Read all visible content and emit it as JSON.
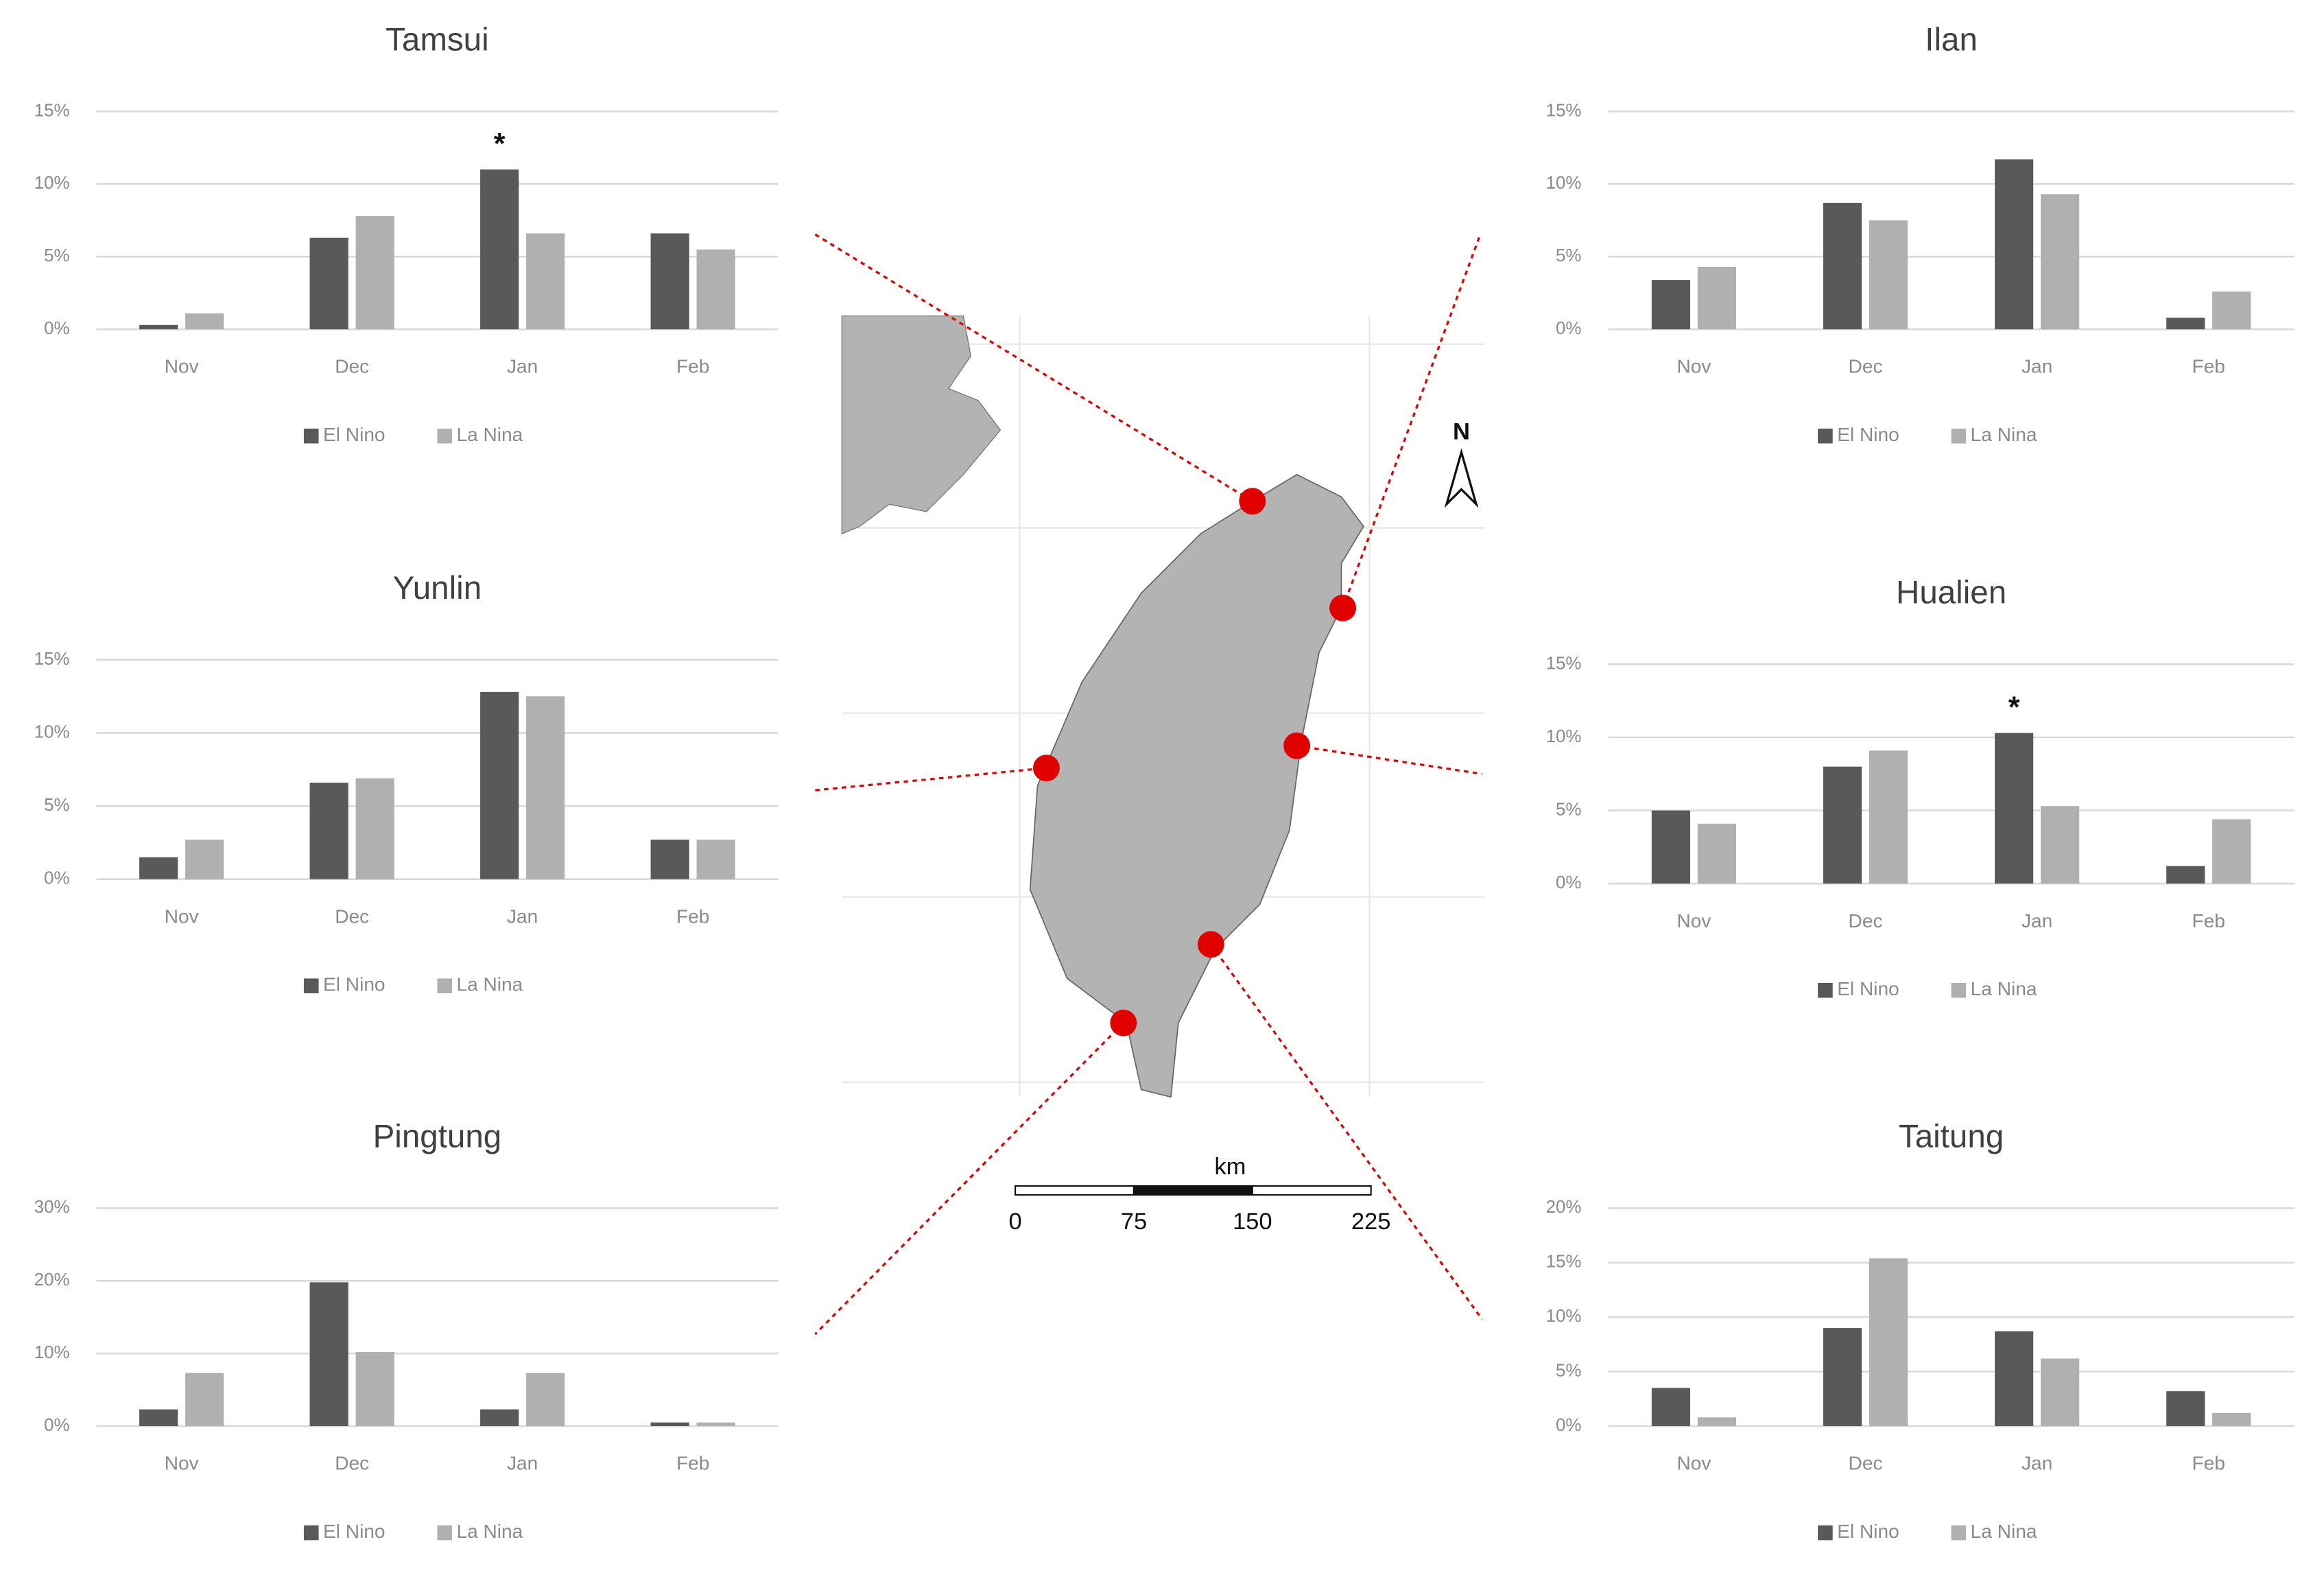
{
  "chart_data": [
    {
      "type": "bar",
      "title": "Tamsui",
      "categories": [
        "Nov",
        "Dec",
        "Jan",
        "Feb"
      ],
      "series": [
        {
          "name": "El Nino",
          "color": "#595959",
          "values": [
            0.3,
            6.3,
            11,
            6.6
          ]
        },
        {
          "name": "La Nina",
          "color": "#b0b0b0",
          "values": [
            1.1,
            7.8,
            6.6,
            5.5
          ]
        }
      ],
      "ylim": [
        0,
        15
      ],
      "yticks": [
        {
          "value": 0,
          "label": "0%"
        },
        {
          "value": 5,
          "label": "5%"
        },
        {
          "value": 10,
          "label": "10%"
        },
        {
          "value": 15,
          "label": "15%"
        }
      ],
      "grid": true,
      "legend": "bottom",
      "annotations": [
        {
          "text": "*",
          "x": "Jan"
        }
      ]
    },
    {
      "type": "bar",
      "title": "Yunlin",
      "categories": [
        "Nov",
        "Dec",
        "Jan",
        "Feb"
      ],
      "series": [
        {
          "name": "El Nino",
          "color": "#595959",
          "values": [
            1.5,
            6.6,
            12.8,
            2.7
          ]
        },
        {
          "name": "La Nina",
          "color": "#b0b0b0",
          "values": [
            2.7,
            6.9,
            12.5,
            2.7
          ]
        }
      ],
      "ylim": [
        0,
        15
      ],
      "yticks": [
        {
          "value": 0,
          "label": "0%"
        },
        {
          "value": 5,
          "label": "5%"
        },
        {
          "value": 10,
          "label": "10%"
        },
        {
          "value": 15,
          "label": "15%"
        }
      ],
      "grid": true,
      "legend": "bottom"
    },
    {
      "type": "bar",
      "title": "Pingtung",
      "categories": [
        "Nov",
        "Dec",
        "Jan",
        "Feb"
      ],
      "series": [
        {
          "name": "El Nino",
          "color": "#595959",
          "values": [
            2.3,
            19.8,
            2.3,
            0.5
          ]
        },
        {
          "name": "La Nina",
          "color": "#b0b0b0",
          "values": [
            7.3,
            10.2,
            7.3,
            0.5
          ]
        }
      ],
      "ylim": [
        0,
        30
      ],
      "yticks": [
        {
          "value": 0,
          "label": "0%"
        },
        {
          "value": 10,
          "label": "10%"
        },
        {
          "value": 20,
          "label": "20%"
        },
        {
          "value": 30,
          "label": "30%"
        }
      ],
      "grid": true,
      "legend": "bottom"
    },
    {
      "type": "bar",
      "title": "Ilan",
      "categories": [
        "Nov",
        "Dec",
        "Jan",
        "Feb"
      ],
      "series": [
        {
          "name": "El Nino",
          "color": "#595959",
          "values": [
            3.4,
            8.7,
            11.7,
            0.8
          ]
        },
        {
          "name": "La Nina",
          "color": "#b0b0b0",
          "values": [
            4.3,
            7.5,
            9.3,
            2.6
          ]
        }
      ],
      "ylim": [
        0,
        15
      ],
      "yticks": [
        {
          "value": 0,
          "label": "0%"
        },
        {
          "value": 5,
          "label": "5%"
        },
        {
          "value": 10,
          "label": "10%"
        },
        {
          "value": 15,
          "label": "15%"
        }
      ],
      "grid": true,
      "legend": "bottom"
    },
    {
      "type": "bar",
      "title": "Hualien",
      "categories": [
        "Nov",
        "Dec",
        "Jan",
        "Feb"
      ],
      "series": [
        {
          "name": "El Nino",
          "color": "#595959",
          "values": [
            5,
            8,
            10.3,
            1.2
          ]
        },
        {
          "name": "La Nina",
          "color": "#b0b0b0",
          "values": [
            4.1,
            9.1,
            5.3,
            4.4
          ]
        }
      ],
      "ylim": [
        0,
        15
      ],
      "yticks": [
        {
          "value": 0,
          "label": "0%"
        },
        {
          "value": 5,
          "label": "5%"
        },
        {
          "value": 10,
          "label": "10%"
        },
        {
          "value": 15,
          "label": "15%"
        }
      ],
      "grid": true,
      "legend": "bottom",
      "annotations": [
        {
          "text": "*",
          "x": "Jan"
        }
      ]
    },
    {
      "type": "bar",
      "title": "Taitung",
      "categories": [
        "Nov",
        "Dec",
        "Jan",
        "Feb"
      ],
      "series": [
        {
          "name": "El Nino",
          "color": "#595959",
          "values": [
            3.5,
            9,
            8.7,
            3.2
          ]
        },
        {
          "name": "La Nina",
          "color": "#b0b0b0",
          "values": [
            0.8,
            15.4,
            6.2,
            1.2
          ]
        }
      ],
      "ylim": [
        0,
        20
      ],
      "yticks": [
        {
          "value": 0,
          "label": "0%"
        },
        {
          "value": 5,
          "label": "5%"
        },
        {
          "value": 10,
          "label": "10%"
        },
        {
          "value": 15,
          "label": "15%"
        },
        {
          "value": 20,
          "label": "20%"
        }
      ],
      "grid": true,
      "legend": "bottom"
    }
  ],
  "map": {
    "north": "N",
    "scale_unit": "km",
    "scale_labels": [
      "0",
      "75",
      "150",
      "225"
    ]
  }
}
